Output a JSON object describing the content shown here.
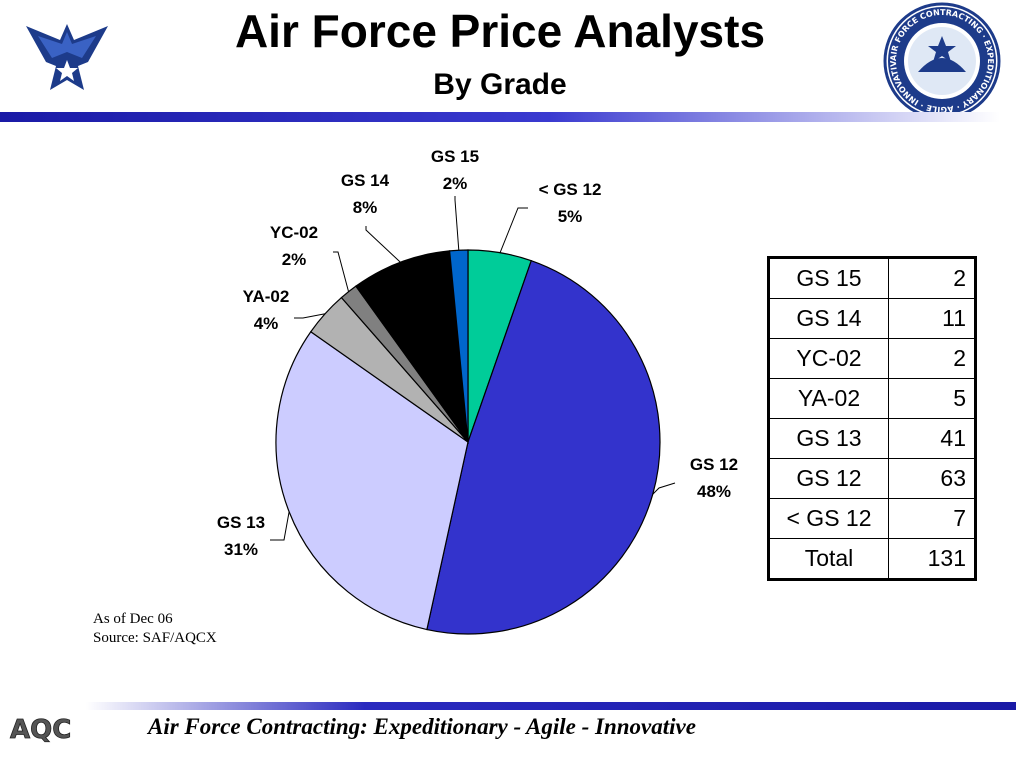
{
  "header": {
    "title": "Air Force Price Analysts",
    "subtitle": "By Grade",
    "seal_text": "AIR FORCE CONTRACTING · EXPEDITIONARY · AGILE · INNOVATIVE"
  },
  "chart_data": {
    "type": "pie",
    "start_angle_deg": 0,
    "direction": "clockwise",
    "slices": [
      {
        "label": "< GS 12",
        "percent_label": "5%",
        "value": 7,
        "color": "#00cc99"
      },
      {
        "label": "GS 12",
        "percent_label": "48%",
        "value": 63,
        "color": "#3333cc"
      },
      {
        "label": "GS 13",
        "percent_label": "31%",
        "value": 41,
        "color": "#ccccff"
      },
      {
        "label": "YA-02",
        "percent_label": "4%",
        "value": 5,
        "color": "#b2b2b2"
      },
      {
        "label": "YC-02",
        "percent_label": "2%",
        "value": 2,
        "color": "#808080"
      },
      {
        "label": "GS 14",
        "percent_label": "8%",
        "value": 11,
        "color": "#000000"
      },
      {
        "label": "GS 15",
        "percent_label": "2%",
        "value": 2,
        "color": "#0066cc"
      }
    ]
  },
  "table": {
    "rows": [
      {
        "label": "GS 15",
        "value": "2"
      },
      {
        "label": "GS 14",
        "value": "11"
      },
      {
        "label": "YC-02",
        "value": "2"
      },
      {
        "label": "YA-02",
        "value": "5"
      },
      {
        "label": "GS 13",
        "value": "41"
      },
      {
        "label": "GS 12",
        "value": "63"
      },
      {
        "label": "< GS 12",
        "value": "7"
      },
      {
        "label": "Total",
        "value": "131"
      }
    ]
  },
  "note": {
    "line1": "As of Dec 06",
    "line2": "Source: SAF/AQCX"
  },
  "footer": {
    "tagline": "Air Force Contracting: Expeditionary - Agile - Innovative",
    "logo_text": "AQC"
  },
  "colors": {
    "band_dark": "#1a1aa6",
    "band_light": "#ffffff"
  }
}
